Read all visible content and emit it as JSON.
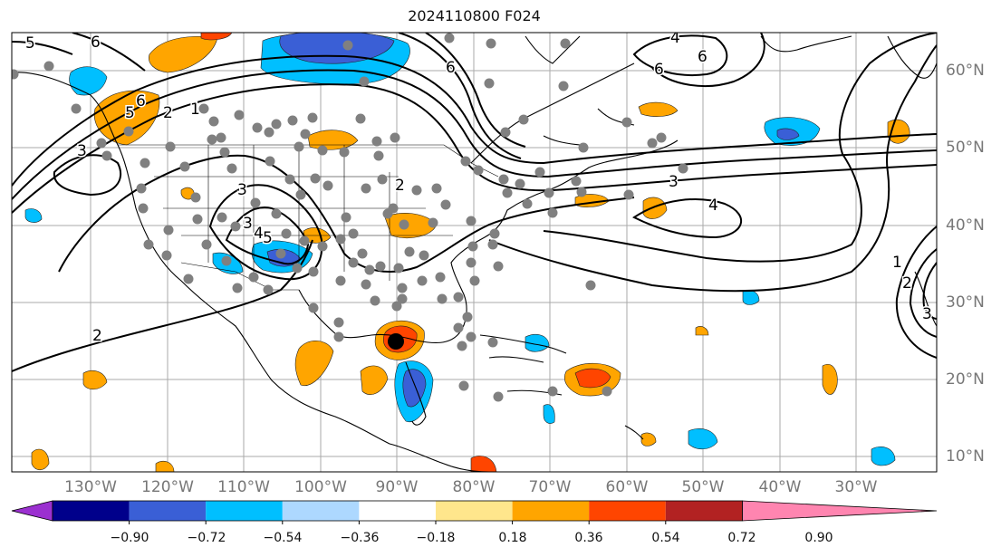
{
  "title": "2024110800 F024",
  "longitude_labels": [
    "130°W",
    "120°W",
    "110°W",
    "100°W",
    "90°W",
    "80°W",
    "70°W",
    "60°W",
    "50°W",
    "40°W",
    "30°W"
  ],
  "latitude_labels": [
    "60°N",
    "50°N",
    "40°N",
    "30°N",
    "20°N",
    "10°N"
  ],
  "colorbar": {
    "labels": [
      "−0.90",
      "−0.72",
      "−0.54",
      "−0.36",
      "−0.18",
      "0.18",
      "0.36",
      "0.54",
      "0.72",
      "0.90"
    ],
    "colors": [
      "#9b30d0",
      "#00008b",
      "#3a5fd6",
      "#00bfff",
      "#add8ff",
      "#ffffff",
      "#ffe68c",
      "#ffa500",
      "#ff4500",
      "#b22222",
      "#ff85b0"
    ]
  },
  "contour_labels": [
    "5",
    "6",
    "6",
    "6",
    "4",
    "6",
    "5",
    "6",
    "2",
    "1",
    "3",
    "3",
    "4",
    "3",
    "2",
    "3",
    "4",
    "5",
    "2",
    "1",
    "2",
    "3"
  ],
  "storm_marker": "tropical-cyclone-center"
}
